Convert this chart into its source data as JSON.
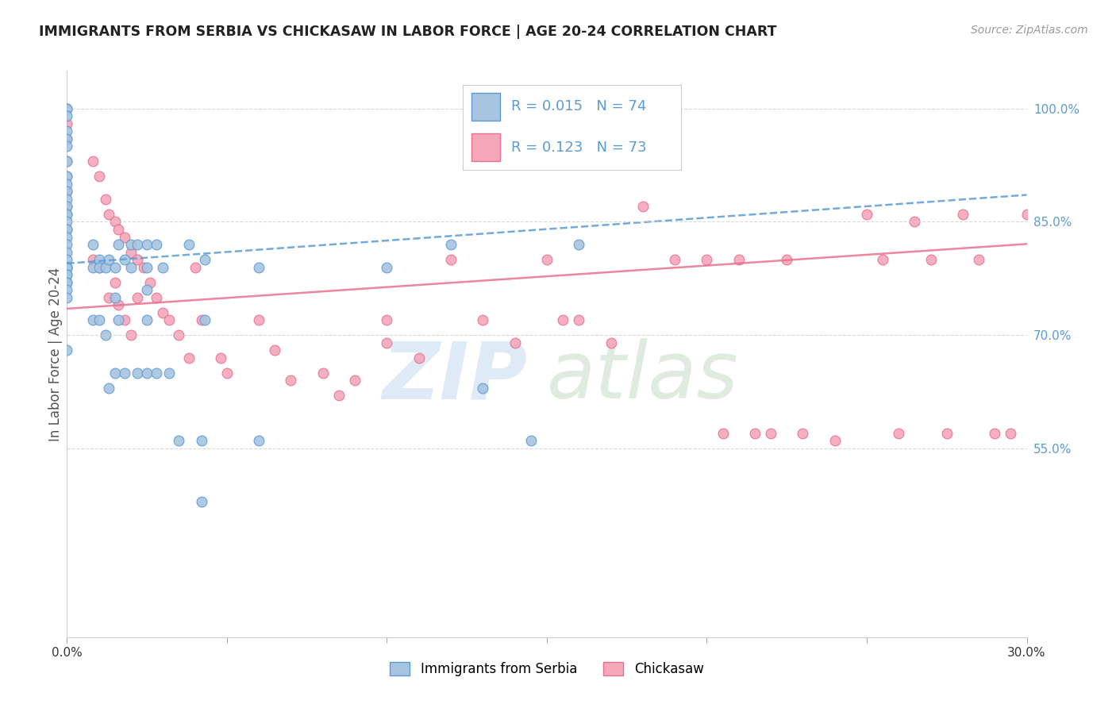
{
  "title": "IMMIGRANTS FROM SERBIA VS CHICKASAW IN LABOR FORCE | AGE 20-24 CORRELATION CHART",
  "source": "Source: ZipAtlas.com",
  "ylabel": "In Labor Force | Age 20-24",
  "watermark_zip": "ZIP",
  "watermark_atlas": "atlas",
  "xlim": [
    0.0,
    0.3
  ],
  "ylim": [
    0.3,
    1.05
  ],
  "right_yticks": [
    1.0,
    0.85,
    0.7,
    0.55
  ],
  "right_yticklabels": [
    "100.0%",
    "85.0%",
    "70.0%",
    "55.0%"
  ],
  "xticks": [
    0.0,
    0.05,
    0.1,
    0.15,
    0.2,
    0.25,
    0.3
  ],
  "xticklabels": [
    "0.0%",
    "",
    "",
    "",
    "",
    "",
    "30.0%"
  ],
  "serbia_color": "#a8c4e0",
  "chickasaw_color": "#f4a7b9",
  "serbia_edge_color": "#5b9bd5",
  "chickasaw_edge_color": "#e87090",
  "serbia_line_color": "#5b9bd5",
  "chickasaw_line_color": "#e87090",
  "background_color": "#ffffff",
  "grid_color": "#d0d0d0",
  "title_color": "#222222",
  "serbia_R": 0.015,
  "serbia_N": 74,
  "chickasaw_R": 0.123,
  "chickasaw_N": 73,
  "serbia_trend_x0": 0.0,
  "serbia_trend_y0": 0.795,
  "serbia_trend_x1": 0.043,
  "serbia_trend_y1": 0.808,
  "chickasaw_trend_x0": 0.0,
  "chickasaw_trend_y0": 0.735,
  "chickasaw_trend_x1": 0.28,
  "chickasaw_trend_y1": 0.815,
  "serbia_scatter_x": [
    0.0,
    0.0,
    0.0,
    0.0,
    0.0,
    0.0,
    0.0,
    0.0,
    0.0,
    0.0,
    0.0,
    0.0,
    0.0,
    0.0,
    0.0,
    0.0,
    0.0,
    0.0,
    0.0,
    0.0,
    0.0,
    0.0,
    0.0,
    0.0,
    0.0,
    0.0,
    0.0,
    0.0,
    0.0,
    0.0,
    0.0,
    0.008,
    0.008,
    0.008,
    0.01,
    0.01,
    0.01,
    0.012,
    0.012,
    0.013,
    0.013,
    0.015,
    0.015,
    0.015,
    0.016,
    0.016,
    0.018,
    0.018,
    0.02,
    0.02,
    0.022,
    0.022,
    0.025,
    0.025,
    0.025,
    0.025,
    0.025,
    0.028,
    0.028,
    0.03,
    0.032,
    0.035,
    0.038,
    0.042,
    0.042,
    0.043,
    0.043,
    0.06,
    0.06,
    0.1,
    0.12,
    0.13,
    0.145,
    0.16
  ],
  "serbia_scatter_y": [
    1.0,
    1.0,
    0.99,
    0.97,
    0.96,
    0.95,
    0.93,
    0.91,
    0.9,
    0.89,
    0.88,
    0.87,
    0.86,
    0.86,
    0.85,
    0.84,
    0.84,
    0.83,
    0.82,
    0.81,
    0.8,
    0.79,
    0.79,
    0.79,
    0.78,
    0.78,
    0.77,
    0.77,
    0.76,
    0.75,
    0.68,
    0.82,
    0.79,
    0.72,
    0.8,
    0.79,
    0.72,
    0.79,
    0.7,
    0.8,
    0.63,
    0.79,
    0.75,
    0.65,
    0.82,
    0.72,
    0.8,
    0.65,
    0.82,
    0.79,
    0.82,
    0.65,
    0.82,
    0.79,
    0.76,
    0.72,
    0.65,
    0.82,
    0.65,
    0.79,
    0.65,
    0.56,
    0.82,
    0.56,
    0.48,
    0.8,
    0.72,
    0.79,
    0.56,
    0.79,
    0.82,
    0.63,
    0.56,
    0.82
  ],
  "chickasaw_scatter_x": [
    0.0,
    0.0,
    0.0,
    0.0,
    0.0,
    0.0,
    0.0,
    0.0,
    0.008,
    0.008,
    0.01,
    0.01,
    0.012,
    0.013,
    0.013,
    0.015,
    0.015,
    0.016,
    0.016,
    0.018,
    0.018,
    0.02,
    0.02,
    0.022,
    0.022,
    0.024,
    0.026,
    0.028,
    0.03,
    0.032,
    0.035,
    0.038,
    0.04,
    0.042,
    0.048,
    0.05,
    0.06,
    0.065,
    0.07,
    0.08,
    0.085,
    0.09,
    0.1,
    0.1,
    0.11,
    0.12,
    0.13,
    0.14,
    0.15,
    0.155,
    0.16,
    0.17,
    0.18,
    0.19,
    0.2,
    0.205,
    0.21,
    0.215,
    0.22,
    0.225,
    0.23,
    0.24,
    0.25,
    0.255,
    0.26,
    0.265,
    0.27,
    0.275,
    0.28,
    0.285,
    0.29,
    0.295,
    0.3
  ],
  "chickasaw_scatter_y": [
    1.0,
    0.98,
    0.96,
    0.93,
    0.91,
    0.89,
    0.87,
    0.79,
    0.93,
    0.8,
    0.91,
    0.79,
    0.88,
    0.86,
    0.75,
    0.85,
    0.77,
    0.84,
    0.74,
    0.83,
    0.72,
    0.81,
    0.7,
    0.8,
    0.75,
    0.79,
    0.77,
    0.75,
    0.73,
    0.72,
    0.7,
    0.67,
    0.79,
    0.72,
    0.67,
    0.65,
    0.72,
    0.68,
    0.64,
    0.65,
    0.62,
    0.64,
    0.72,
    0.69,
    0.67,
    0.8,
    0.72,
    0.69,
    0.8,
    0.72,
    0.72,
    0.69,
    0.87,
    0.8,
    0.8,
    0.57,
    0.8,
    0.57,
    0.57,
    0.8,
    0.57,
    0.56,
    0.86,
    0.8,
    0.57,
    0.85,
    0.8,
    0.57,
    0.86,
    0.8,
    0.57,
    0.57,
    0.86
  ]
}
